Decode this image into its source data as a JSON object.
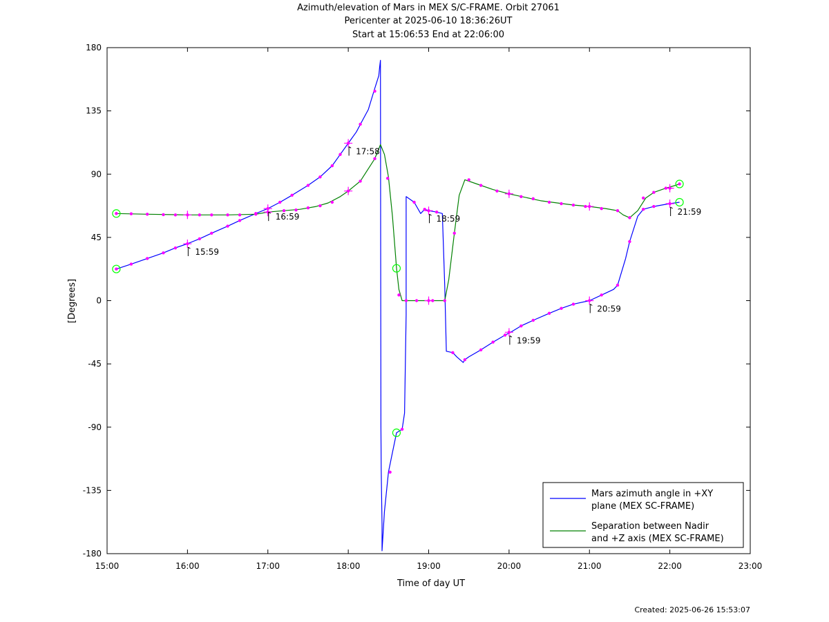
{
  "chart_data": {
    "type": "line",
    "title_lines": [
      "Azimuth/elevation of Mars in MEX S/C-FRAME.  Orbit 27061",
      "Pericenter at 2025-06-10 18:36:26UT",
      "Start at 15:06:53 End at 22:06:00"
    ],
    "xlabel": "Time of day UT",
    "ylabel": "[Degrees]",
    "xlim": [
      15,
      23
    ],
    "ylim": [
      -180,
      180
    ],
    "x_ticks": [
      15,
      16,
      17,
      18,
      19,
      20,
      21,
      22,
      23
    ],
    "x_tick_labels": [
      "15:00",
      "16:00",
      "17:00",
      "18:00",
      "19:00",
      "20:00",
      "21:00",
      "22:00",
      "23:00"
    ],
    "y_ticks": [
      180,
      135,
      90,
      45,
      0,
      -45,
      -90,
      -135,
      -180
    ],
    "y_tick_labels": [
      "180",
      "135",
      "90",
      "45",
      "0",
      "-45",
      "-90",
      "-135",
      "-180"
    ],
    "legend_position": "bottom-right",
    "series": [
      {
        "name": "Mars azimuth angle in +XY plane (MEX SC-FRAME)",
        "legend_lines": [
          "Mars azimuth angle in +XY",
          "plane (MEX SC-FRAME)"
        ],
        "color": "#0000ff",
        "points": [
          [
            15.115,
            22.5
          ],
          [
            15.3,
            26
          ],
          [
            15.5,
            30
          ],
          [
            15.7,
            34
          ],
          [
            15.85,
            37.5
          ],
          [
            16.0,
            40.5
          ],
          [
            16.15,
            44
          ],
          [
            16.3,
            48
          ],
          [
            16.5,
            53
          ],
          [
            16.65,
            57
          ],
          [
            16.85,
            62
          ],
          [
            17.0,
            65.5
          ],
          [
            17.15,
            70
          ],
          [
            17.3,
            75
          ],
          [
            17.5,
            82
          ],
          [
            17.65,
            88
          ],
          [
            17.8,
            96
          ],
          [
            17.9,
            104
          ],
          [
            18.0,
            112
          ],
          [
            18.1,
            120
          ],
          [
            18.17,
            127.5
          ],
          [
            18.25,
            136
          ],
          [
            18.33,
            151
          ],
          [
            18.38,
            160
          ],
          [
            18.39,
            166
          ],
          [
            18.4,
            171
          ],
          [
            18.403,
            50
          ],
          [
            18.406,
            -90
          ],
          [
            18.41,
            -120
          ],
          [
            18.42,
            -159
          ],
          [
            18.42,
            -178
          ],
          [
            18.45,
            -150
          ],
          [
            18.5,
            -122
          ],
          [
            18.55,
            -108
          ],
          [
            18.6,
            -94
          ],
          [
            18.67,
            -91.5
          ],
          [
            18.7,
            -80
          ],
          [
            18.72,
            -10
          ],
          [
            18.72,
            74
          ],
          [
            18.82,
            70
          ],
          [
            18.9,
            62
          ],
          [
            18.95,
            65
          ],
          [
            19.0,
            64
          ],
          [
            19.1,
            63
          ],
          [
            19.17,
            62
          ],
          [
            19.2,
            10
          ],
          [
            19.22,
            -36
          ],
          [
            19.3,
            -37
          ],
          [
            19.35,
            -40
          ],
          [
            19.43,
            -44
          ],
          [
            19.45,
            -42
          ],
          [
            19.5,
            -40
          ],
          [
            19.65,
            -35
          ],
          [
            19.8,
            -29.5
          ],
          [
            19.95,
            -24.5
          ],
          [
            20.02,
            -22.5
          ],
          [
            20.15,
            -18
          ],
          [
            20.3,
            -14
          ],
          [
            20.5,
            -9
          ],
          [
            20.65,
            -5.5
          ],
          [
            20.8,
            -2.5
          ],
          [
            21.0,
            0
          ],
          [
            21.15,
            4
          ],
          [
            21.3,
            8
          ],
          [
            21.35,
            11
          ],
          [
            21.45,
            30
          ],
          [
            21.5,
            42
          ],
          [
            21.6,
            60
          ],
          [
            21.67,
            65
          ],
          [
            21.8,
            67
          ],
          [
            21.9,
            68
          ],
          [
            22.0,
            69
          ],
          [
            22.12,
            70
          ]
        ]
      },
      {
        "name": "Separation between Nadir and +Z axis (MEX SC-FRAME)",
        "legend_lines": [
          "Separation between Nadir",
          "and +Z axis (MEX SC-FRAME)"
        ],
        "color": "#008000",
        "points": [
          [
            15.115,
            62
          ],
          [
            15.5,
            61.5
          ],
          [
            16.0,
            61
          ],
          [
            16.5,
            61
          ],
          [
            16.85,
            61.5
          ],
          [
            17.0,
            63
          ],
          [
            17.2,
            64
          ],
          [
            17.4,
            65
          ],
          [
            17.6,
            67
          ],
          [
            17.75,
            69.5
          ],
          [
            17.9,
            74
          ],
          [
            18.0,
            78
          ],
          [
            18.15,
            85
          ],
          [
            18.33,
            101
          ],
          [
            18.4,
            111
          ],
          [
            18.45,
            104
          ],
          [
            18.5,
            88
          ],
          [
            18.55,
            60
          ],
          [
            18.6,
            23
          ],
          [
            18.63,
            8
          ],
          [
            18.67,
            0
          ],
          [
            18.72,
            0
          ],
          [
            19.0,
            0
          ],
          [
            19.2,
            0
          ],
          [
            19.25,
            15
          ],
          [
            19.32,
            48
          ],
          [
            19.38,
            75
          ],
          [
            19.45,
            86
          ],
          [
            19.6,
            83
          ],
          [
            19.8,
            79
          ],
          [
            20.0,
            76
          ],
          [
            20.2,
            73.5
          ],
          [
            20.4,
            71
          ],
          [
            20.6,
            69.5
          ],
          [
            20.8,
            68
          ],
          [
            21.0,
            67
          ],
          [
            21.2,
            65.5
          ],
          [
            21.35,
            64
          ],
          [
            21.42,
            61
          ],
          [
            21.5,
            59
          ],
          [
            21.6,
            64
          ],
          [
            21.7,
            73
          ],
          [
            21.8,
            77
          ],
          [
            21.95,
            80
          ],
          [
            22.07,
            82
          ],
          [
            22.12,
            83
          ]
        ]
      }
    ],
    "markers": [
      [
        15.115,
        22.5
      ],
      [
        15.3,
        26
      ],
      [
        15.5,
        30
      ],
      [
        15.7,
        34
      ],
      [
        15.85,
        37.5
      ],
      [
        16.15,
        44
      ],
      [
        16.3,
        48
      ],
      [
        16.5,
        53
      ],
      [
        16.65,
        57
      ],
      [
        16.85,
        62
      ],
      [
        17.15,
        70
      ],
      [
        17.3,
        75
      ],
      [
        17.5,
        82
      ],
      [
        17.65,
        88
      ],
      [
        17.8,
        96
      ],
      [
        17.9,
        104
      ],
      [
        18.15,
        125.5
      ],
      [
        18.33,
        149
      ],
      [
        18.52,
        -122
      ],
      [
        18.67,
        -91.5
      ],
      [
        18.82,
        70
      ],
      [
        18.95,
        65
      ],
      [
        19.1,
        63
      ],
      [
        19.3,
        -37
      ],
      [
        19.45,
        -42
      ],
      [
        19.65,
        -35
      ],
      [
        19.8,
        -29.5
      ],
      [
        19.95,
        -24.5
      ],
      [
        20.15,
        -18
      ],
      [
        20.3,
        -14
      ],
      [
        20.5,
        -9
      ],
      [
        20.65,
        -5.5
      ],
      [
        20.8,
        -2.5
      ],
      [
        21.15,
        4
      ],
      [
        21.35,
        11
      ],
      [
        21.5,
        42
      ],
      [
        21.67,
        65
      ],
      [
        21.8,
        67
      ],
      [
        15.115,
        62
      ],
      [
        15.3,
        61.8
      ],
      [
        15.5,
        61.5
      ],
      [
        15.7,
        61.2
      ],
      [
        15.85,
        61
      ],
      [
        16.15,
        61
      ],
      [
        16.3,
        61
      ],
      [
        16.5,
        61
      ],
      [
        16.65,
        61
      ],
      [
        16.85,
        61.5
      ],
      [
        17.2,
        64
      ],
      [
        17.35,
        64.5
      ],
      [
        17.5,
        66
      ],
      [
        17.65,
        67.5
      ],
      [
        17.8,
        70
      ],
      [
        18.15,
        85
      ],
      [
        18.33,
        101
      ],
      [
        18.49,
        87
      ],
      [
        18.63,
        4
      ],
      [
        18.72,
        0
      ],
      [
        18.85,
        0
      ],
      [
        19.05,
        0
      ],
      [
        19.2,
        0
      ],
      [
        19.32,
        48
      ],
      [
        19.5,
        86
      ],
      [
        19.65,
        82
      ],
      [
        19.85,
        78
      ],
      [
        20.15,
        74
      ],
      [
        20.3,
        72.5
      ],
      [
        20.5,
        70
      ],
      [
        20.65,
        69
      ],
      [
        20.8,
        68
      ],
      [
        20.95,
        67
      ],
      [
        21.15,
        65.5
      ],
      [
        21.35,
        64
      ],
      [
        21.5,
        59
      ],
      [
        21.67,
        73
      ],
      [
        21.8,
        77
      ],
      [
        21.95,
        80
      ],
      [
        22.12,
        83
      ]
    ],
    "hour_markers": [
      [
        16.0,
        40.5
      ],
      [
        17.0,
        65.5
      ],
      [
        18.0,
        112
      ],
      [
        19.0,
        64
      ],
      [
        20.0,
        -22.5
      ],
      [
        21.0,
        0
      ],
      [
        22.0,
        69
      ],
      [
        16.0,
        61
      ],
      [
        17.0,
        63
      ],
      [
        18.0,
        78
      ],
      [
        19.0,
        0
      ],
      [
        20.0,
        76
      ],
      [
        21.0,
        67
      ],
      [
        22.0,
        80
      ]
    ],
    "circle_markers": [
      [
        15.115,
        22.5
      ],
      [
        15.115,
        62
      ],
      [
        18.6,
        23
      ],
      [
        18.6,
        -94
      ],
      [
        22.12,
        70
      ],
      [
        22.12,
        83
      ]
    ],
    "annotations": [
      {
        "x": 16.0,
        "y": 40.5,
        "text": "15:59"
      },
      {
        "x": 17.0,
        "y": 65.5,
        "text": "16:59"
      },
      {
        "x": 18.0,
        "y": 112,
        "text": "17:58"
      },
      {
        "x": 19.0,
        "y": 64,
        "text": "18:59"
      },
      {
        "x": 20.0,
        "y": -22.5,
        "text": "19:59"
      },
      {
        "x": 21.0,
        "y": 0,
        "text": "20:59"
      },
      {
        "x": 22.0,
        "y": 69,
        "text": "21:59"
      }
    ],
    "marker_color": "#ff00ff",
    "circle_color": "#00ff00"
  },
  "footer": {
    "created": "Created: 2025-06-26 15:53:07"
  }
}
